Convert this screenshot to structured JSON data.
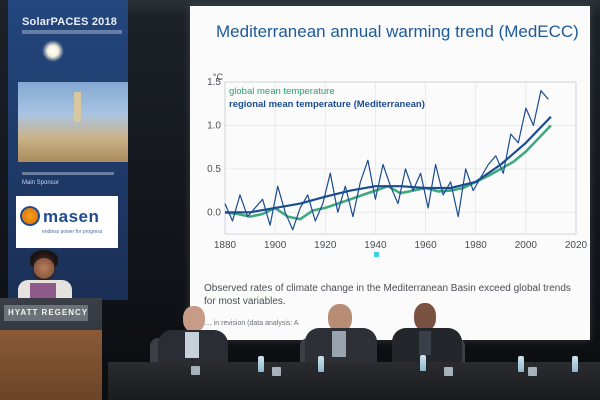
{
  "banner": {
    "event_title": "SolarPACES 2018",
    "partners_label": "Main Sponsor",
    "sponsor_name": "masen",
    "sponsor_tagline": "endless power for progress"
  },
  "podium": {
    "sign": "HYATT REGENCY"
  },
  "slide": {
    "title": "Mediterranean annual warming trend (MedECC)",
    "unit": "°C",
    "legend": [
      {
        "name": "global mean temperature",
        "color": "#2aa070"
      },
      {
        "name": "regional mean temperature (Mediterranean)",
        "color": "#1b4c8f"
      }
    ],
    "caption": "Observed rates of climate change in the Mediterranean Basin exceed global trends for most variables.",
    "citation": "..., in revision (data analysis: A"
  },
  "chart_data": {
    "type": "line",
    "title": "Mediterranean annual warming trend (MedECC)",
    "ylabel": "°C",
    "xlabel": "",
    "xlim": [
      1880,
      2020
    ],
    "ylim": [
      -0.25,
      1.5
    ],
    "x_ticks": [
      "1880",
      "1900",
      "1920",
      "1940",
      "1960",
      "1980",
      "2000",
      "2020"
    ],
    "y_ticks": [
      "0.0",
      "0.5",
      "1.0",
      "1.5"
    ],
    "grid": true,
    "legend_position": "top-left",
    "series": [
      {
        "name": "global mean temperature",
        "color": "#2aa070",
        "x": [
          1880,
          1885,
          1890,
          1895,
          1900,
          1905,
          1910,
          1915,
          1920,
          1925,
          1930,
          1935,
          1940,
          1945,
          1950,
          1955,
          1960,
          1965,
          1970,
          1975,
          1980,
          1985,
          1990,
          1995,
          2000,
          2005,
          2010
        ],
        "values": [
          0.0,
          -0.02,
          -0.05,
          -0.02,
          0.05,
          -0.05,
          -0.08,
          0.02,
          0.05,
          0.1,
          0.15,
          0.2,
          0.25,
          0.3,
          0.22,
          0.25,
          0.28,
          0.24,
          0.25,
          0.28,
          0.35,
          0.42,
          0.5,
          0.58,
          0.7,
          0.85,
          1.0
        ]
      },
      {
        "name": "regional mean temperature (Mediterranean)",
        "color": "#1b4c8f",
        "x": [
          1880,
          1883,
          1886,
          1889,
          1892,
          1895,
          1898,
          1901,
          1904,
          1907,
          1910,
          1913,
          1916,
          1919,
          1922,
          1925,
          1928,
          1931,
          1934,
          1937,
          1940,
          1943,
          1946,
          1949,
          1952,
          1955,
          1958,
          1961,
          1964,
          1967,
          1970,
          1973,
          1976,
          1979,
          1982,
          1985,
          1988,
          1991,
          1994,
          1997,
          2000,
          2003,
          2006,
          2009
        ],
        "values": [
          0.1,
          -0.1,
          0.2,
          -0.05,
          0.05,
          0.15,
          -0.15,
          0.3,
          0.0,
          -0.2,
          0.05,
          0.2,
          -0.1,
          0.1,
          0.45,
          0.0,
          0.3,
          -0.05,
          0.35,
          0.6,
          0.15,
          0.55,
          0.3,
          0.1,
          0.5,
          0.25,
          0.45,
          0.05,
          0.55,
          0.2,
          0.35,
          -0.05,
          0.5,
          0.25,
          0.4,
          0.55,
          0.65,
          0.45,
          0.9,
          0.8,
          1.2,
          1.0,
          1.4,
          1.3
        ]
      },
      {
        "name": "",
        "color": "#1b4c8f",
        "x": [
          1880,
          1890,
          1900,
          1910,
          1920,
          1930,
          1940,
          1950,
          1960,
          1970,
          1980,
          1990,
          2000,
          2010
        ],
        "values": [
          0.0,
          0.0,
          0.05,
          0.1,
          0.18,
          0.25,
          0.3,
          0.3,
          0.28,
          0.28,
          0.35,
          0.55,
          0.8,
          1.1
        ]
      }
    ]
  }
}
